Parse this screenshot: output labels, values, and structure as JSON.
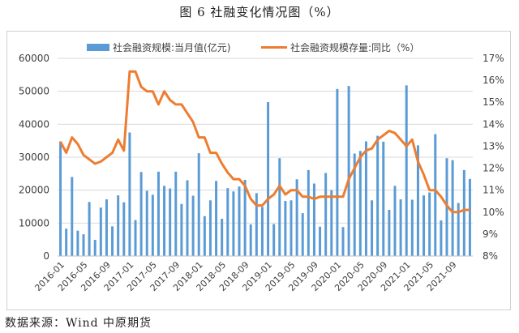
{
  "title": "图 6 社融变化情况图（%）",
  "source": "数据来源：Wind  中原期货",
  "colors": {
    "bar": "#5b9bd5",
    "line": "#ed7d31",
    "grid": "#d9d9d9",
    "axis_text": "#404040"
  },
  "chart_data": {
    "type": "bar",
    "title": "",
    "legend_position": "top",
    "grid": true,
    "x": [
      "2016-01",
      "2016-02",
      "2016-03",
      "2016-04",
      "2016-05",
      "2016-06",
      "2016-07",
      "2016-08",
      "2016-09",
      "2016-10",
      "2016-11",
      "2016-12",
      "2017-01",
      "2017-02",
      "2017-03",
      "2017-04",
      "2017-05",
      "2017-06",
      "2017-07",
      "2017-08",
      "2017-09",
      "2017-10",
      "2017-11",
      "2017-12",
      "2018-01",
      "2018-02",
      "2018-03",
      "2018-04",
      "2018-05",
      "2018-06",
      "2018-07",
      "2018-08",
      "2018-09",
      "2018-10",
      "2018-11",
      "2018-12",
      "2019-01",
      "2019-02",
      "2019-03",
      "2019-04",
      "2019-05",
      "2019-06",
      "2019-07",
      "2019-08",
      "2019-09",
      "2019-10",
      "2019-11",
      "2019-12",
      "2020-01",
      "2020-02",
      "2020-03",
      "2020-04",
      "2020-05",
      "2020-06",
      "2020-07",
      "2020-08",
      "2020-09",
      "2020-10",
      "2020-11",
      "2020-12",
      "2021-01",
      "2021-02",
      "2021-03",
      "2021-04",
      "2021-05",
      "2021-06",
      "2021-07",
      "2021-08",
      "2021-09",
      "2021-10",
      "2021-11",
      "2021-12"
    ],
    "tick_labels": [
      "2016-01",
      "2016-05",
      "2016-09",
      "2017-01",
      "2017-05",
      "2017-09",
      "2018-01",
      "2018-05",
      "2018-09",
      "2019-01",
      "2019-05",
      "2019-09",
      "2020-01",
      "2020-05",
      "2020-09",
      "2021-01",
      "2021-05",
      "2021-09"
    ],
    "y_left": {
      "ylim": [
        0,
        60000
      ],
      "ticks": [
        0,
        10000,
        20000,
        30000,
        40000,
        50000,
        60000
      ]
    },
    "y_right": {
      "ylim": [
        8,
        17
      ],
      "ticks": [
        "8%",
        "9%",
        "10%",
        "11%",
        "12%",
        "13%",
        "14%",
        "15%",
        "16%",
        "17%"
      ]
    },
    "series": [
      {
        "name": "社会融资规模:当月值(亿元)",
        "type": "bar",
        "axis": "left",
        "values": [
          34800,
          8300,
          24000,
          7700,
          6600,
          16400,
          4900,
          14700,
          17200,
          9000,
          18400,
          16300,
          37500,
          10900,
          25500,
          19800,
          18600,
          25600,
          21300,
          20500,
          25600,
          15800,
          23000,
          18300,
          31200,
          12100,
          16900,
          22800,
          11300,
          20600,
          19600,
          21100,
          23100,
          9600,
          19100,
          14900,
          46700,
          9700,
          29700,
          16700,
          16900,
          23300,
          13000,
          26100,
          22000,
          8900,
          25200,
          20000,
          50700,
          8800,
          51600,
          31100,
          31900,
          34800,
          16900,
          36500,
          34700,
          14000,
          21300,
          17200,
          51800,
          17100,
          33600,
          18400,
          19300,
          37000,
          10800,
          29700,
          29100,
          16100,
          26100,
          23400
        ]
      },
      {
        "name": "社会融资规模存量:同比（%）",
        "type": "line",
        "axis": "right",
        "values": [
          13.2,
          12.7,
          13.4,
          13.1,
          12.6,
          12.4,
          12.2,
          12.3,
          12.5,
          12.7,
          13.3,
          12.8,
          16.4,
          16.4,
          15.7,
          15.5,
          15.5,
          14.9,
          15.5,
          15.1,
          14.9,
          14.9,
          14.5,
          14.1,
          13.4,
          13.4,
          12.7,
          12.7,
          12.2,
          11.8,
          11.5,
          11.5,
          11.2,
          10.6,
          10.3,
          10.3,
          10.6,
          10.8,
          11.2,
          10.8,
          11.0,
          11.0,
          10.7,
          10.7,
          10.6,
          10.7,
          10.7,
          10.7,
          10.7,
          10.7,
          11.5,
          12.0,
          12.5,
          12.8,
          12.9,
          13.3,
          13.5,
          13.7,
          13.6,
          13.3,
          13.0,
          13.3,
          12.3,
          11.7,
          11.0,
          11.0,
          10.7,
          10.3,
          10.0,
          10.0,
          10.1,
          10.1
        ]
      }
    ]
  }
}
